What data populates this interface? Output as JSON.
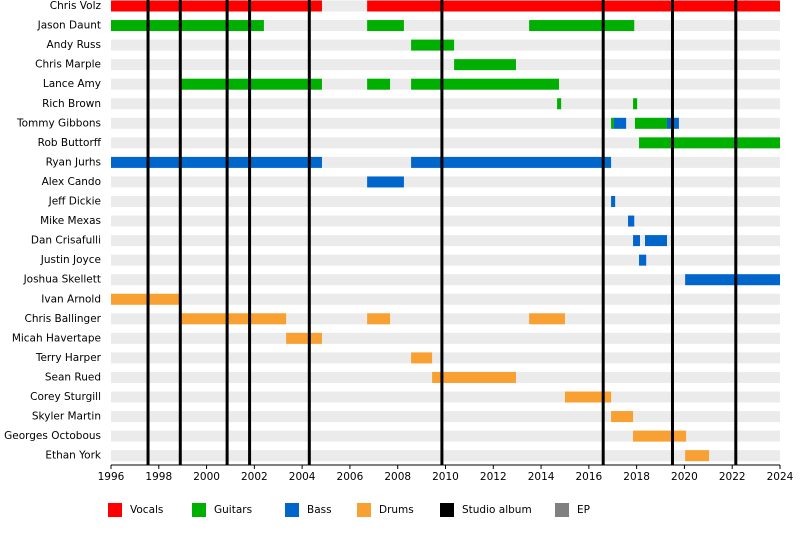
{
  "chart_data": {
    "type": "timeline",
    "categories": [
      "Chris Volz",
      "Jason Daunt",
      "Andy Russ",
      "Chris Marple",
      "Lance Amy",
      "Rich Brown",
      "Tommy Gibbons",
      "Rob Buttorff",
      "Ryan Jurhs",
      "Alex Cando",
      "Jeff Dickie",
      "Mike Mexas",
      "Dan Crisafulli",
      "Justin Joyce",
      "Joshua Skellett",
      "Ivan Arnold",
      "Chris Ballinger",
      "Micah Havertape",
      "Terry Harper",
      "Sean Rued",
      "Corey Sturgill",
      "Skyler Martin",
      "Georges Octobous",
      "Ethan York"
    ],
    "xlim": [
      1996,
      2024
    ],
    "xticks": [
      1996,
      1998,
      2000,
      2002,
      2004,
      2006,
      2008,
      2010,
      2012,
      2014,
      2016,
      2018,
      2020,
      2022,
      2024
    ],
    "series": [
      {
        "name": "Vocals",
        "color": "#ff0000",
        "values": [
          [
            [
              1996,
              2004.83
            ],
            [
              2006.72,
              2024
            ]
          ],
          [],
          [],
          [],
          [],
          [],
          [],
          [],
          [],
          [],
          [],
          [],
          [],
          [],
          [],
          [],
          [],
          [],
          [],
          [],
          [],
          [],
          [],
          []
        ]
      },
      {
        "name": "Guitars",
        "color": "#00b000",
        "values": [
          [],
          [
            [
              1996,
              2002.4
            ],
            [
              2006.72,
              2008.26
            ],
            [
              2013.5,
              2017.9
            ]
          ],
          [
            [
              2008.56,
              2010.36
            ]
          ],
          [
            [
              2010.36,
              2012.95
            ]
          ],
          [
            [
              1998.93,
              2004.83
            ],
            [
              2006.72,
              2007.68
            ],
            [
              2008.56,
              2014.75
            ]
          ],
          [
            [
              2014.67,
              2014.84
            ],
            [
              2017.85,
              2018.02
            ]
          ],
          [
            [
              2016.93,
              2017.05
            ],
            [
              2017.93,
              2019.27
            ]
          ],
          [
            [
              2018.1,
              2024
            ]
          ],
          [],
          [],
          [],
          [],
          [],
          [],
          [],
          [],
          [],
          [],
          [],
          [],
          [],
          [],
          [],
          []
        ]
      },
      {
        "name": "Bass",
        "color": "#0066cc",
        "values": [
          [],
          [],
          [],
          [],
          [],
          [],
          [
            [
              2017.05,
              2017.56
            ],
            [
              2019.27,
              2019.77
            ]
          ],
          [],
          [
            [
              1996,
              2004.83
            ],
            [
              2008.56,
              2016.93
            ]
          ],
          [
            [
              2006.72,
              2008.26
            ]
          ],
          [
            [
              2016.93,
              2017.1
            ]
          ],
          [
            [
              2017.64,
              2017.9
            ]
          ],
          [
            [
              2017.85,
              2018.14
            ],
            [
              2018.35,
              2019.27
            ]
          ],
          [
            [
              2018.1,
              2018.4
            ]
          ],
          [
            [
              2020.03,
              2024
            ]
          ],
          [],
          [],
          [],
          [],
          [],
          [],
          [],
          [],
          []
        ]
      },
      {
        "name": "Drums",
        "color": "#f9a032",
        "values": [
          [],
          [],
          [],
          [],
          [],
          [],
          [],
          [],
          [],
          [],
          [],
          [],
          [],
          [],
          [],
          [
            [
              1996,
              1998.9
            ]
          ],
          [
            [
              1998.93,
              2003.33
            ],
            [
              2006.72,
              2007.68
            ],
            [
              2013.5,
              2015.0
            ]
          ],
          [
            [
              2003.33,
              2004.83
            ]
          ],
          [
            [
              2008.56,
              2009.44
            ]
          ],
          [
            [
              2009.44,
              2012.95
            ]
          ],
          [
            [
              2015.0,
              2016.93
            ]
          ],
          [
            [
              2016.93,
              2017.85
            ]
          ],
          [
            [
              2017.85,
              2020.07
            ]
          ],
          [
            [
              2020.03,
              2021.03
            ]
          ]
        ]
      }
    ],
    "markers": [
      {
        "name": "Studio album",
        "color": "#000000",
        "x": [
          1997.55,
          1998.9,
          2000.86,
          2001.8,
          2004.3,
          2009.85,
          2016.6,
          2019.5,
          2022.15
        ]
      },
      {
        "name": "EP",
        "color": "#808080",
        "x": []
      }
    ]
  }
}
